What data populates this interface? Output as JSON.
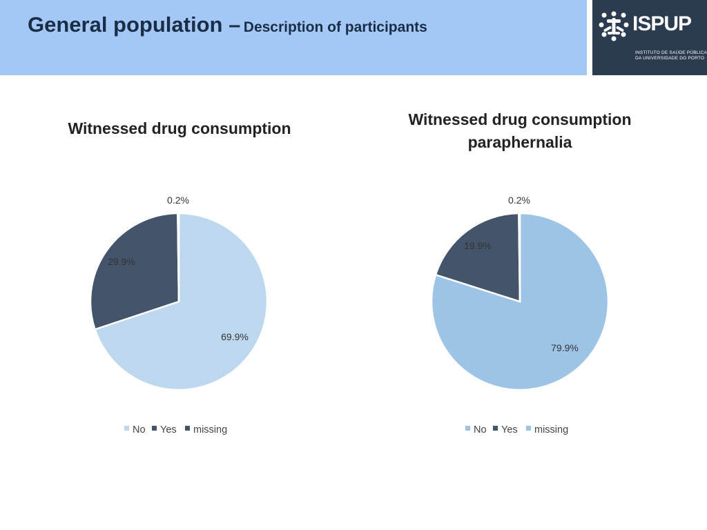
{
  "header": {
    "title": "General population –",
    "subtitle": "Description of participants"
  },
  "logo": {
    "name": "ISPUP",
    "line1": "INSTITUTO DE SAÚDE PÚBLICA",
    "line2": "DA UNIVERSIDADE DO PORTO"
  },
  "colors": {
    "header_bg": "#a4c8f6",
    "logo_bg": "#2b3b50",
    "slice_dark": "#44546a"
  },
  "chart_data": [
    {
      "type": "pie",
      "title": "Witnessed drug consumption",
      "categories": [
        "No",
        "Yes",
        "missing"
      ],
      "values": [
        69.9,
        29.9,
        0.2
      ],
      "labels": [
        "69.9%",
        "29.9%",
        "0.2%"
      ],
      "colors": [
        "#bdd7ee",
        "#44546a",
        "#44546a"
      ],
      "legend": "bottom"
    },
    {
      "type": "pie",
      "title": "Witnessed drug consumption paraphernalia",
      "categories": [
        "No",
        "Yes",
        "missing"
      ],
      "values": [
        79.9,
        19.9,
        0.2
      ],
      "labels": [
        "79.9%",
        "19.9%",
        "0.2%"
      ],
      "colors": [
        "#9dc3e6",
        "#44546a",
        "#9dc3e6"
      ],
      "legend": "bottom"
    }
  ]
}
